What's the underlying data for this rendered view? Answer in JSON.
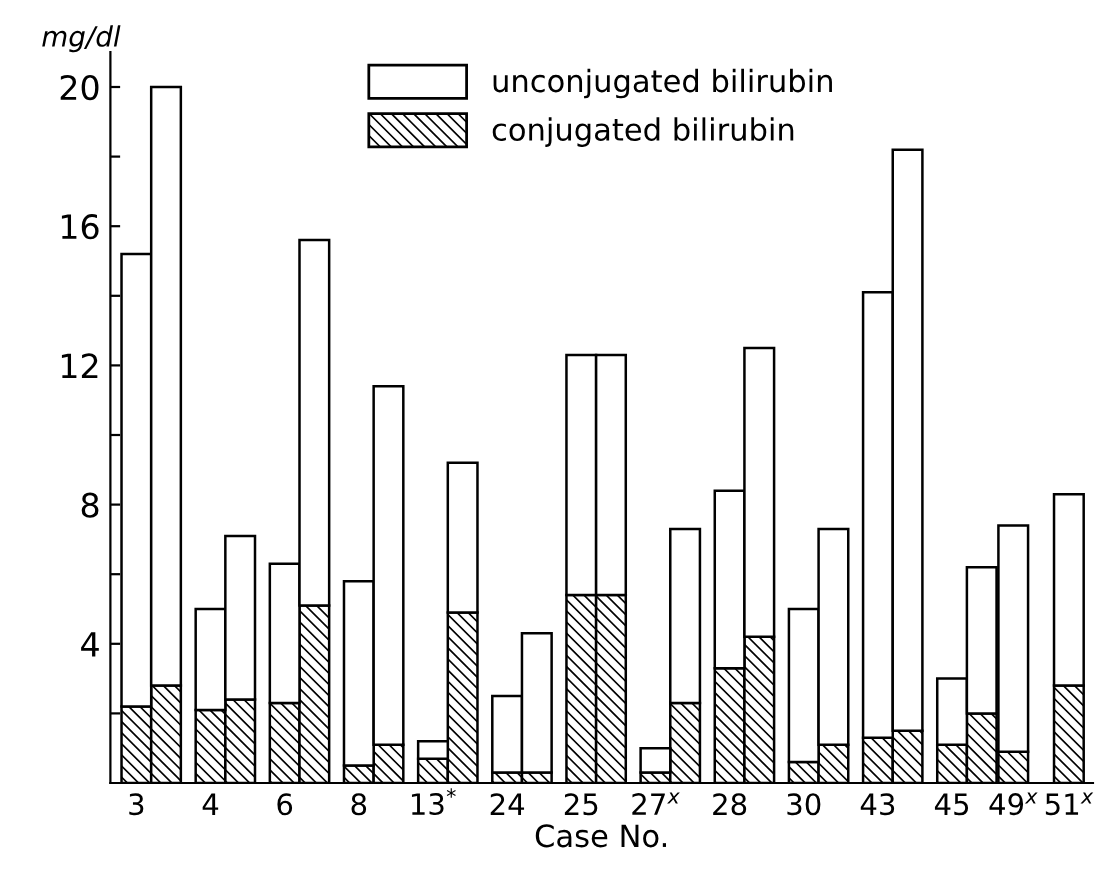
{
  "chart_data": {
    "type": "bar",
    "stacked": true,
    "xlabel": "Case No.",
    "ylabel": "mg/dl",
    "categories": [
      "3",
      null,
      "4",
      null,
      "6",
      null,
      "8",
      null,
      "13$^{*}$",
      null,
      "24",
      null,
      "25",
      null,
      "27$^{x}$",
      null,
      "28",
      null,
      "30",
      null,
      "43",
      null,
      "45",
      null,
      "49$^{x}$",
      "51$^{x}$"
    ],
    "series": [
      {
        "name": "conjugated bilirubin",
        "color": "#000000",
        "values": [
          2.2,
          2.8,
          2.1,
          2.4,
          2.3,
          5.1,
          0.5,
          1.1,
          0.7,
          4.9,
          0.3,
          0.3,
          5.4,
          5.4,
          0.3,
          2.3,
          3.3,
          4.2,
          0.6,
          1.1,
          1.3,
          1.5,
          1.1,
          2.0,
          0.9,
          2.8
        ]
      },
      {
        "name": "unconjugated bilirubin",
        "color": "#ffffff",
        "values": [
          13.0,
          17.2,
          2.9,
          4.7,
          4.0,
          10.5,
          5.3,
          10.3,
          0.5,
          4.3,
          2.2,
          4.0,
          6.9,
          6.9,
          0.7,
          5.0,
          5.1,
          8.3,
          4.4,
          6.2,
          12.8,
          16.7,
          1.9,
          4.2,
          6.5,
          5.5
        ]
      }
    ],
    "ylim": [
      0,
      21
    ],
    "yticks": [
      {
        "value": 2,
        "label": null
      },
      4,
      {
        "value": 6,
        "label": null
      },
      8,
      {
        "value": 10,
        "label": null
      },
      12,
      {
        "value": 14,
        "label": null
      },
      16,
      {
        "value": 18,
        "label": null
      },
      20
    ],
    "grid": false,
    "legend": "top"
  }
}
